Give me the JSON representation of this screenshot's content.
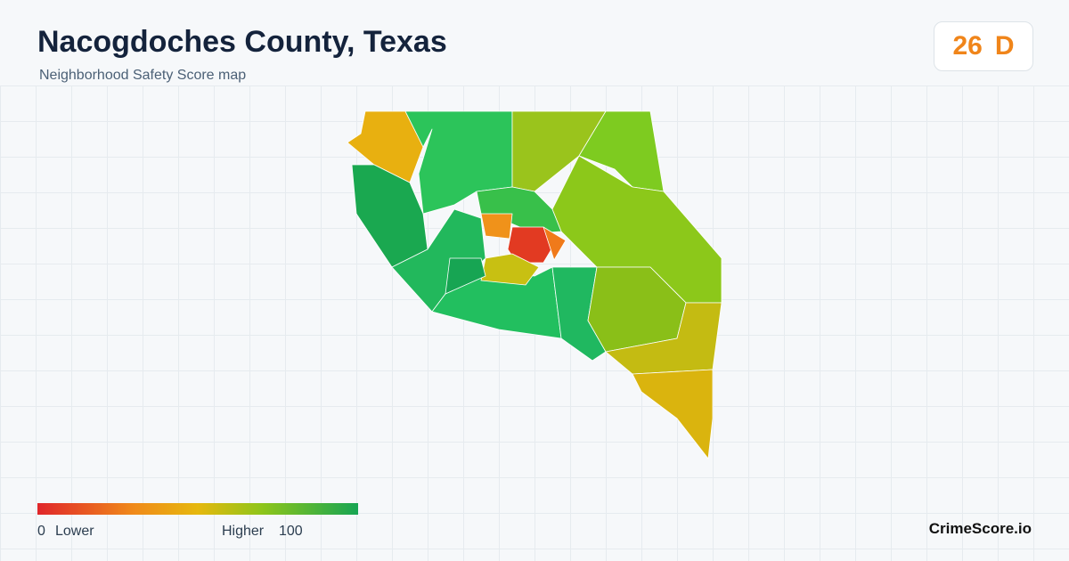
{
  "header": {
    "title": "Nacogdoches County, Texas",
    "subtitle": "Neighborhood Safety Score map"
  },
  "score": {
    "value": 26,
    "grade": "D"
  },
  "legend": {
    "min": 0,
    "min_label": "Lower",
    "max_label": "Higher",
    "max": 100
  },
  "brand": "CrimeScore.io"
}
